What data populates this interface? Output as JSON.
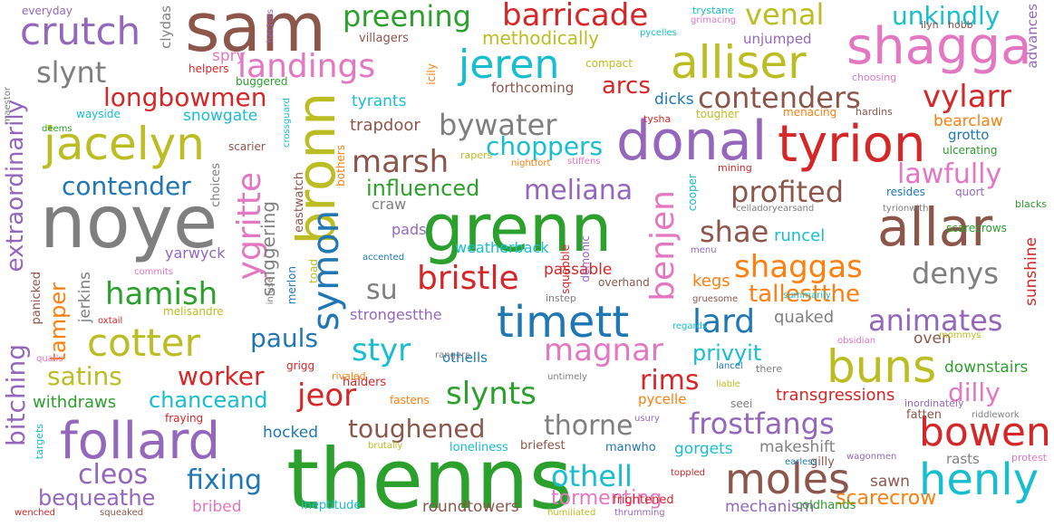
{
  "words": [
    {
      "text": "thenns",
      "color": "#2ca02c"
    },
    {
      "text": "noye",
      "color": "#7f7f7f"
    },
    {
      "text": "sam",
      "color": "#8c564b"
    },
    {
      "text": "grenn",
      "color": "#2ca02c"
    },
    {
      "text": "bronn",
      "color": "#bcbd22"
    },
    {
      "text": "donal",
      "color": "#9467bd"
    },
    {
      "text": "tyrion",
      "color": "#d62728"
    },
    {
      "text": "allar",
      "color": "#8c564b"
    },
    {
      "text": "follard",
      "color": "#9467bd"
    },
    {
      "text": "shagga",
      "color": "#e377c2"
    },
    {
      "text": "alliser",
      "color": "#bcbd22"
    },
    {
      "text": "jacelyn",
      "color": "#bcbd22"
    },
    {
      "text": "timett",
      "color": "#1f77b4"
    },
    {
      "text": "jeren",
      "color": "#17becf"
    },
    {
      "text": "henly",
      "color": "#17becf"
    },
    {
      "text": "bowen",
      "color": "#d62728"
    },
    {
      "text": "buns",
      "color": "#bcbd22"
    },
    {
      "text": "moles",
      "color": "#8c564b"
    },
    {
      "text": "cotter",
      "color": "#bcbd22"
    },
    {
      "text": "crutch",
      "color": "#9467bd"
    },
    {
      "text": "ygritte",
      "color": "#e377c2"
    },
    {
      "text": "symon",
      "color": "#1f77b4"
    },
    {
      "text": "benjen",
      "color": "#e377c2"
    },
    {
      "text": "bristle",
      "color": "#d62728"
    },
    {
      "text": "magnar",
      "color": "#e377c2"
    },
    {
      "text": "landings",
      "color": "#e377c2"
    },
    {
      "text": "barricade",
      "color": "#d62728"
    },
    {
      "text": "preening",
      "color": "#2ca02c"
    },
    {
      "text": "venal",
      "color": "#bcbd22"
    },
    {
      "text": "unkindly",
      "color": "#17becf"
    },
    {
      "text": "contenders",
      "color": "#8c564b"
    },
    {
      "text": "vylarr",
      "color": "#d62728"
    },
    {
      "text": "slynt",
      "color": "#7f7f7f"
    },
    {
      "text": "longbowmen",
      "color": "#d62728"
    },
    {
      "text": "bywater",
      "color": "#7f7f7f"
    },
    {
      "text": "arcs",
      "color": "#d62728"
    },
    {
      "text": "marsh",
      "color": "#8c564b"
    },
    {
      "text": "choppers",
      "color": "#17becf"
    },
    {
      "text": "meliana",
      "color": "#9467bd"
    },
    {
      "text": "influenced",
      "color": "#2ca02c"
    },
    {
      "text": "profited",
      "color": "#8c564b"
    },
    {
      "text": "lawfully",
      "color": "#e377c2"
    },
    {
      "text": "contender",
      "color": "#1f77b4"
    },
    {
      "text": "shaggas",
      "color": "#ff7f0e"
    },
    {
      "text": "shae",
      "color": "#8c564b"
    },
    {
      "text": "denys",
      "color": "#7f7f7f"
    },
    {
      "text": "hamish",
      "color": "#2ca02c"
    },
    {
      "text": "extraordinarily",
      "color": "#9467bd"
    },
    {
      "text": "tamper",
      "color": "#ff7f0e"
    },
    {
      "text": "satins",
      "color": "#bcbd22"
    },
    {
      "text": "worker",
      "color": "#d62728"
    },
    {
      "text": "pauls",
      "color": "#1f77b4"
    },
    {
      "text": "styr",
      "color": "#17becf"
    },
    {
      "text": "lard",
      "color": "#1f77b4"
    },
    {
      "text": "animates",
      "color": "#9467bd"
    },
    {
      "text": "privyit",
      "color": "#17becf"
    },
    {
      "text": "tallestthe",
      "color": "#ff7f0e"
    },
    {
      "text": "jeor",
      "color": "#d62728"
    },
    {
      "text": "slynts",
      "color": "#2ca02c"
    },
    {
      "text": "rims",
      "color": "#d62728"
    },
    {
      "text": "bitching",
      "color": "#9467bd"
    },
    {
      "text": "chanceand",
      "color": "#17becf"
    },
    {
      "text": "toughened",
      "color": "#8c564b"
    },
    {
      "text": "thorne",
      "color": "#7f7f7f"
    },
    {
      "text": "frostfangs",
      "color": "#9467bd"
    },
    {
      "text": "dilly",
      "color": "#e377c2"
    },
    {
      "text": "cleos",
      "color": "#9467bd"
    },
    {
      "text": "fixing",
      "color": "#1f77b4"
    },
    {
      "text": "othell",
      "color": "#17becf"
    },
    {
      "text": "tormenting",
      "color": "#e377c2"
    },
    {
      "text": "bequeathe",
      "color": "#9467bd"
    },
    {
      "text": "scarecrow",
      "color": "#ff7f0e"
    },
    {
      "text": "su",
      "color": "#7f7f7f"
    },
    {
      "text": "methodically",
      "color": "#bcbd22"
    },
    {
      "text": "snowgate",
      "color": "#17becf"
    },
    {
      "text": "tyrants",
      "color": "#17becf"
    },
    {
      "text": "trapdoor",
      "color": "#8c564b"
    },
    {
      "text": "forthcoming",
      "color": "#8c564b"
    },
    {
      "text": "dicks",
      "color": "#1f77b4"
    },
    {
      "text": "bearclaw",
      "color": "#ff7f0e"
    },
    {
      "text": "grotto",
      "color": "#1f77b4"
    },
    {
      "text": "sunshine",
      "color": "#d62728"
    },
    {
      "text": "runcel",
      "color": "#17becf"
    },
    {
      "text": "kegs",
      "color": "#ff7f0e"
    },
    {
      "text": "passable",
      "color": "#d62728"
    },
    {
      "text": "strongestthe",
      "color": "#9467bd"
    },
    {
      "text": "quaked",
      "color": "#7f7f7f"
    },
    {
      "text": "oven",
      "color": "#8c564b"
    },
    {
      "text": "downstairs",
      "color": "#2ca02c"
    },
    {
      "text": "transgressions",
      "color": "#d62728"
    },
    {
      "text": "withdraws",
      "color": "#2ca02c"
    },
    {
      "text": "hocked",
      "color": "#1f77b4"
    },
    {
      "text": "gorgets",
      "color": "#17becf"
    },
    {
      "text": "makeshift",
      "color": "#7f7f7f"
    },
    {
      "text": "rasts",
      "color": "#7f7f7f"
    },
    {
      "text": "sawn",
      "color": "#8c564b"
    },
    {
      "text": "mechanism",
      "color": "#9467bd"
    },
    {
      "text": "coldhands",
      "color": "#2ca02c"
    },
    {
      "text": "roundtowers",
      "color": "#8c564b"
    },
    {
      "text": "yarwyck",
      "color": "#9467bd"
    },
    {
      "text": "sniggering",
      "color": "#7f7f7f"
    },
    {
      "text": "villagers",
      "color": "#8c564b"
    },
    {
      "text": "unjumped",
      "color": "#9467bd"
    },
    {
      "text": "spry",
      "color": "#e377c2"
    },
    {
      "text": "weatherback",
      "color": "#17becf"
    },
    {
      "text": "craw",
      "color": "#7f7f7f"
    },
    {
      "text": "pads",
      "color": "#9467bd"
    },
    {
      "text": "othells",
      "color": "#1f77b4"
    },
    {
      "text": "halders",
      "color": "#d62728"
    },
    {
      "text": "loneliness",
      "color": "#17becf"
    },
    {
      "text": "briefest",
      "color": "#8c564b"
    },
    {
      "text": "manwho",
      "color": "#1f77b4"
    },
    {
      "text": "pycelle",
      "color": "#ff7f0e"
    },
    {
      "text": "fatten",
      "color": "#8c564b"
    },
    {
      "text": "gilly",
      "color": "#8c564b"
    },
    {
      "text": "bribed",
      "color": "#e377c2"
    },
    {
      "text": "ineptitude",
      "color": "#17becf"
    },
    {
      "text": "frightened",
      "color": "#d62728"
    },
    {
      "text": "helpers",
      "color": "#d62728"
    },
    {
      "text": "compact",
      "color": "#bcbd22"
    },
    {
      "text": "buggered",
      "color": "#2ca02c"
    },
    {
      "text": "clydas",
      "color": "#7f7f7f"
    },
    {
      "text": "choosing",
      "color": "#e377c2"
    },
    {
      "text": "advances",
      "color": "#9467bd"
    },
    {
      "text": "everyday",
      "color": "#9467bd"
    },
    {
      "text": "trystane",
      "color": "#17becf"
    },
    {
      "text": "grimacing",
      "color": "#e377c2"
    },
    {
      "text": "pycelles",
      "color": "#17becf"
    },
    {
      "text": "ilyn",
      "color": "#8c564b"
    },
    {
      "text": "hobb",
      "color": "#8c564b"
    },
    {
      "text": "tougher",
      "color": "#bcbd22"
    },
    {
      "text": "menacing",
      "color": "#ff7f0e"
    },
    {
      "text": "hardins",
      "color": "#8c564b"
    },
    {
      "text": "tysha",
      "color": "#d62728"
    },
    {
      "text": "ulcerating",
      "color": "#2ca02c"
    },
    {
      "text": "wayside",
      "color": "#17becf"
    },
    {
      "text": "deems",
      "color": "#2ca02c"
    },
    {
      "text": "scarier",
      "color": "#8c564b"
    },
    {
      "text": "rapers",
      "color": "#bcbd22"
    },
    {
      "text": "nightfort",
      "color": "#ff7f0e"
    },
    {
      "text": "stiffens",
      "color": "#e377c2"
    },
    {
      "text": "mining",
      "color": "#d62728"
    },
    {
      "text": "resides",
      "color": "#1f77b4"
    },
    {
      "text": "quort",
      "color": "#9467bd"
    },
    {
      "text": "celladoryearsand",
      "color": "#7f7f7f"
    },
    {
      "text": "tyrionwith",
      "color": "#7f7f7f"
    },
    {
      "text": "blacks",
      "color": "#2ca02c"
    },
    {
      "text": "menu",
      "color": "#9467bd"
    },
    {
      "text": "scarecrows",
      "color": "#2ca02c"
    },
    {
      "text": "commits",
      "color": "#e377c2"
    },
    {
      "text": "accented",
      "color": "#1f77b4"
    },
    {
      "text": "summarily",
      "color": "#17becf"
    },
    {
      "text": "gruesome",
      "color": "#8c564b"
    },
    {
      "text": "overhand",
      "color": "#8c564b"
    },
    {
      "text": "instep",
      "color": "#7f7f7f"
    },
    {
      "text": "melisandre",
      "color": "#bcbd22"
    },
    {
      "text": "oxtail",
      "color": "#d62728"
    },
    {
      "text": "regards",
      "color": "#17becf"
    },
    {
      "text": "rangers",
      "color": "#7f7f7f"
    },
    {
      "text": "obsidian",
      "color": "#e377c2"
    },
    {
      "text": "mommys",
      "color": "#bcbd22"
    },
    {
      "text": "quails",
      "color": "#e377c2"
    },
    {
      "text": "grigg",
      "color": "#d62728"
    },
    {
      "text": "rivaled",
      "color": "#ff7f0e"
    },
    {
      "text": "untimely",
      "color": "#7f7f7f"
    },
    {
      "text": "lancel",
      "color": "#1f77b4"
    },
    {
      "text": "there",
      "color": "#7f7f7f"
    },
    {
      "text": "liable",
      "color": "#bcbd22"
    },
    {
      "text": "fastens",
      "color": "#ff7f0e"
    },
    {
      "text": "seei",
      "color": "#7f7f7f"
    },
    {
      "text": "inordinately",
      "color": "#9467bd"
    },
    {
      "text": "riddlework",
      "color": "#7f7f7f"
    },
    {
      "text": "fraying",
      "color": "#d62728"
    },
    {
      "text": "usury",
      "color": "#9467bd"
    },
    {
      "text": "brutally",
      "color": "#bcbd22"
    },
    {
      "text": "earless",
      "color": "#1f77b4"
    },
    {
      "text": "protest",
      "color": "#e377c2"
    },
    {
      "text": "targets",
      "color": "#17becf"
    },
    {
      "text": "toppled",
      "color": "#d62728"
    },
    {
      "text": "wenched",
      "color": "#d62728"
    },
    {
      "text": "squeaked",
      "color": "#8c564b"
    },
    {
      "text": "humiliated",
      "color": "#bcbd22"
    },
    {
      "text": "thrumming",
      "color": "#9467bd"
    },
    {
      "text": "wagonmen",
      "color": "#9467bd"
    },
    {
      "text": "maestor",
      "color": "#7f7f7f"
    },
    {
      "text": "panicked",
      "color": "#8c564b"
    },
    {
      "text": "jerkins",
      "color": "#7f7f7f"
    },
    {
      "text": "choices",
      "color": "#7f7f7f"
    },
    {
      "text": "infuse",
      "color": "#7f7f7f"
    },
    {
      "text": "merlon",
      "color": "#1f77b4"
    },
    {
      "text": "toad",
      "color": "#bcbd22"
    },
    {
      "text": "eastwatch",
      "color": "#8c564b"
    },
    {
      "text": "crossguard",
      "color": "#17becf"
    },
    {
      "text": "bothers",
      "color": "#ff7f0e"
    },
    {
      "text": "hectors",
      "color": "#9467bd"
    },
    {
      "text": "icily",
      "color": "#ff7f0e"
    },
    {
      "text": "squabble",
      "color": "#d62728"
    },
    {
      "text": "demonic",
      "color": "#9467bd"
    },
    {
      "text": "cooper",
      "color": "#17becf"
    }
  ]
}
